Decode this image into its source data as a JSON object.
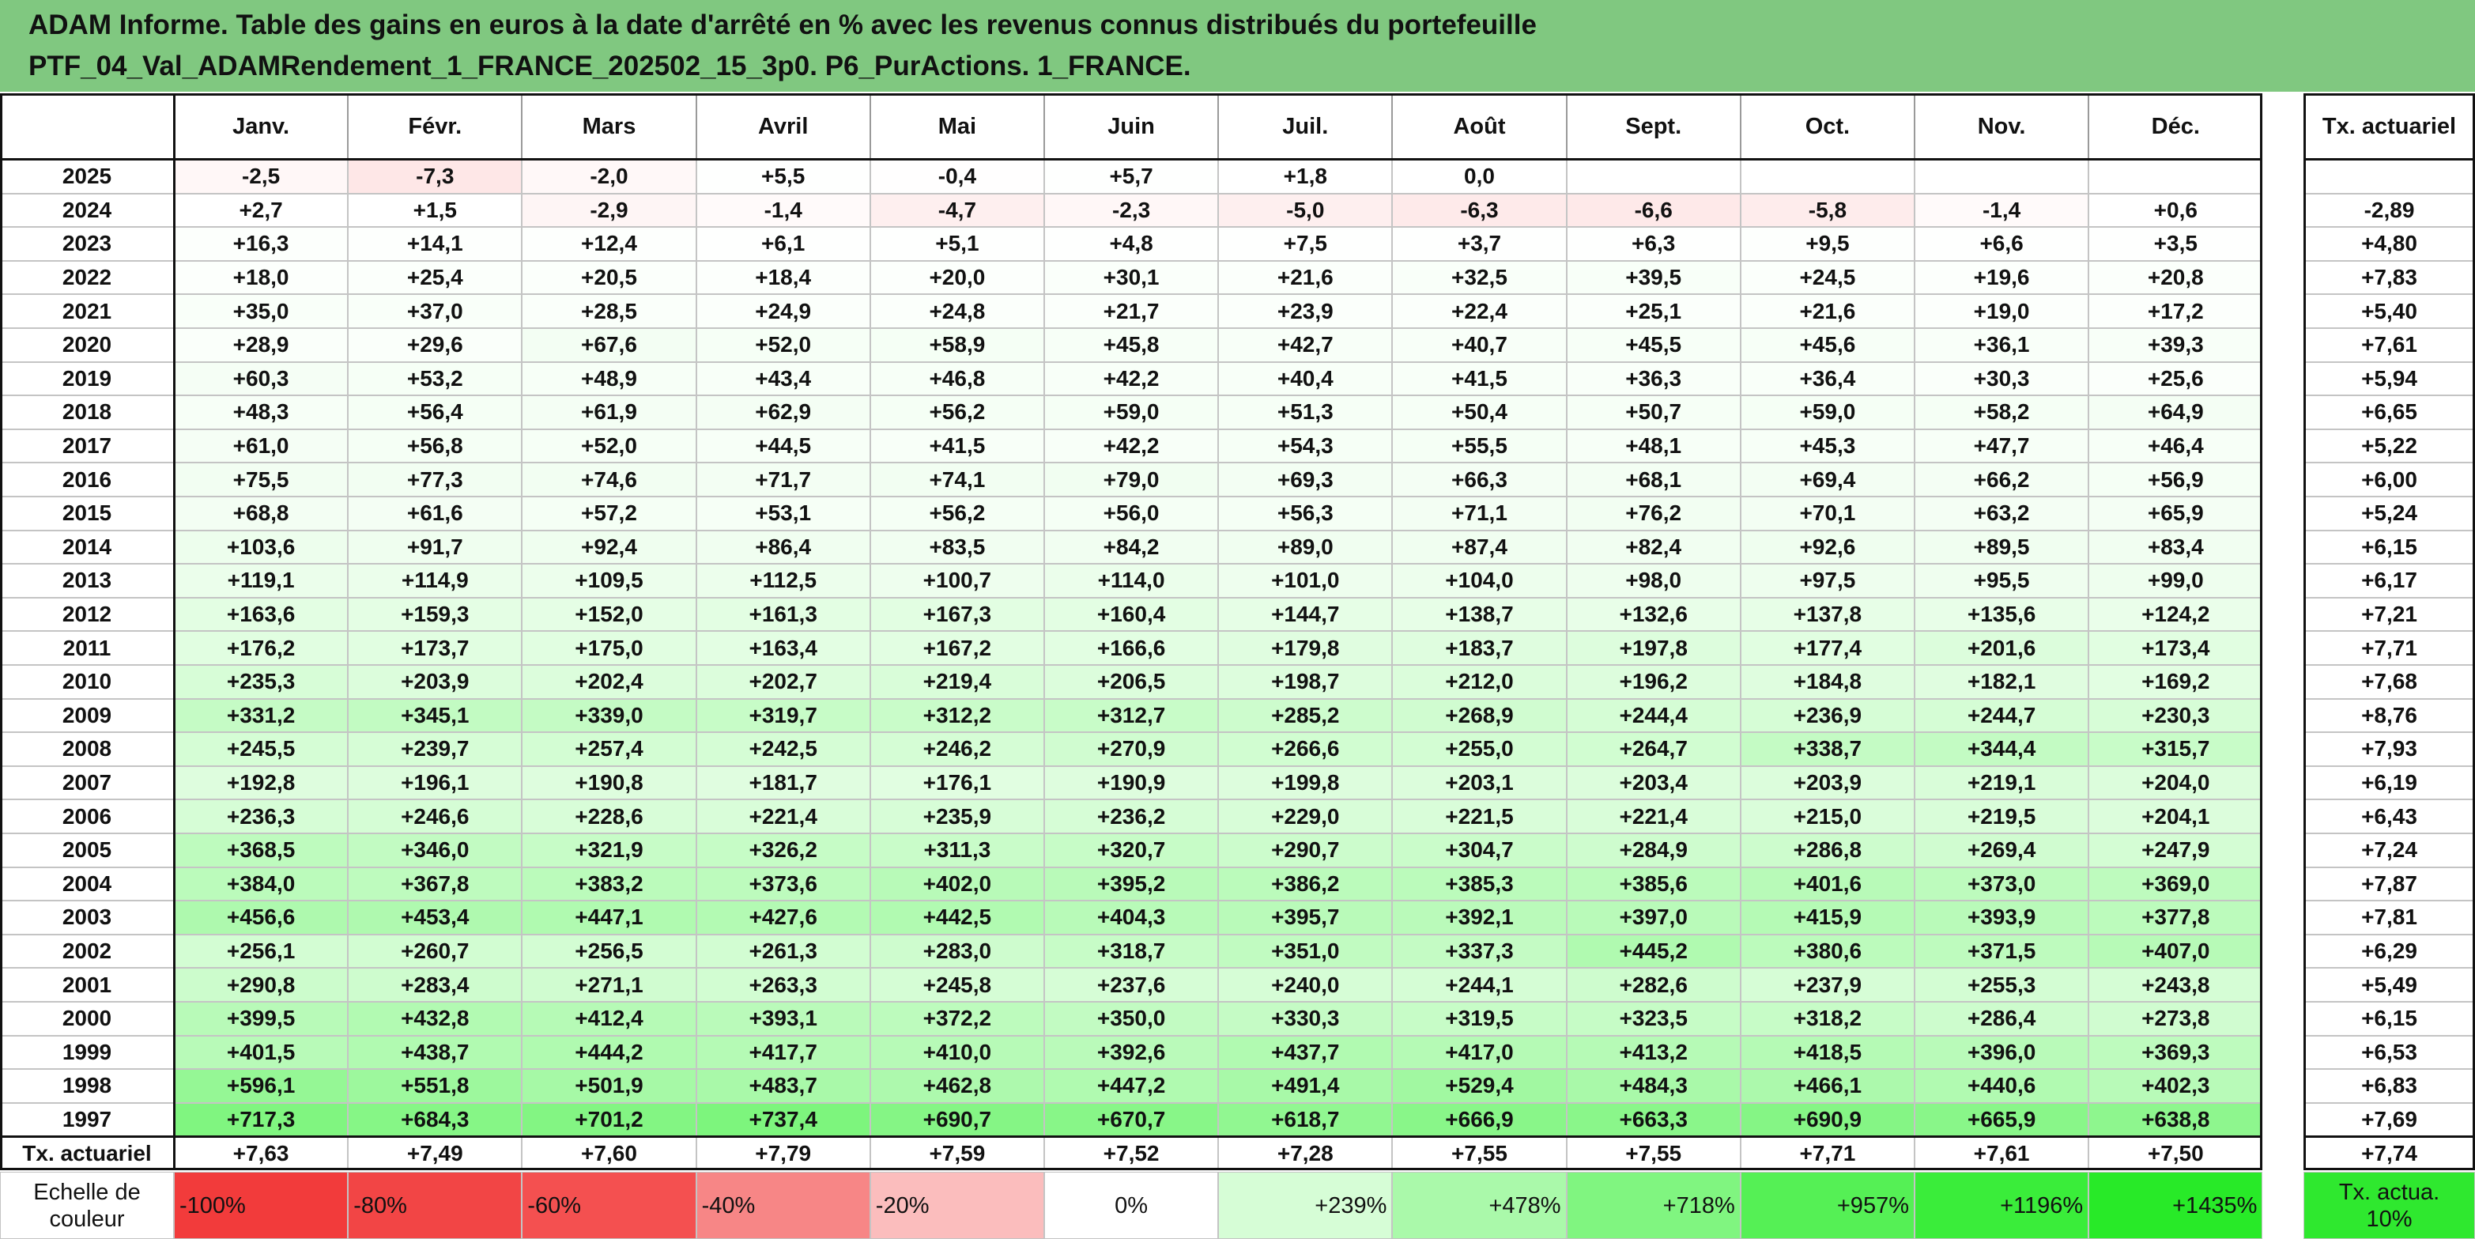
{
  "header": {
    "title_lines": [
      "ADAM Informe. Table des gains en euros à la date d'arrêté en % avec les revenus connus distribués du portefeuille",
      "PTF_04_Val_ADAMRendement_1_FRANCE_202502_15_3p0. P6_PurActions. 1_FRANCE."
    ]
  },
  "table": {
    "columns": [
      "Janv.",
      "Févr.",
      "Mars",
      "Avril",
      "Mai",
      "Juin",
      "Juil.",
      "Août",
      "Sept.",
      "Oct.",
      "Nov.",
      "Déc."
    ],
    "tx_header": "Tx. actuariel",
    "rows": [
      {
        "year": "2025",
        "values": [
          "-2,5",
          "-7,3",
          "-2,0",
          "+5,5",
          "-0,4",
          "+5,7",
          "+1,8",
          "0,0",
          null,
          null,
          null,
          null
        ],
        "tx": null
      },
      {
        "year": "2024",
        "values": [
          "+2,7",
          "+1,5",
          "-2,9",
          "-1,4",
          "-4,7",
          "-2,3",
          "-5,0",
          "-6,3",
          "-6,6",
          "-5,8",
          "-1,4",
          "+0,6"
        ],
        "tx": "-2,89"
      },
      {
        "year": "2023",
        "values": [
          "+16,3",
          "+14,1",
          "+12,4",
          "+6,1",
          "+5,1",
          "+4,8",
          "+7,5",
          "+3,7",
          "+6,3",
          "+9,5",
          "+6,6",
          "+3,5"
        ],
        "tx": "+4,80"
      },
      {
        "year": "2022",
        "values": [
          "+18,0",
          "+25,4",
          "+20,5",
          "+18,4",
          "+20,0",
          "+30,1",
          "+21,6",
          "+32,5",
          "+39,5",
          "+24,5",
          "+19,6",
          "+20,8"
        ],
        "tx": "+7,83"
      },
      {
        "year": "2021",
        "values": [
          "+35,0",
          "+37,0",
          "+28,5",
          "+24,9",
          "+24,8",
          "+21,7",
          "+23,9",
          "+22,4",
          "+25,1",
          "+21,6",
          "+19,0",
          "+17,2"
        ],
        "tx": "+5,40"
      },
      {
        "year": "2020",
        "values": [
          "+28,9",
          "+29,6",
          "+67,6",
          "+52,0",
          "+58,9",
          "+45,8",
          "+42,7",
          "+40,7",
          "+45,5",
          "+45,6",
          "+36,1",
          "+39,3"
        ],
        "tx": "+7,61"
      },
      {
        "year": "2019",
        "values": [
          "+60,3",
          "+53,2",
          "+48,9",
          "+43,4",
          "+46,8",
          "+42,2",
          "+40,4",
          "+41,5",
          "+36,3",
          "+36,4",
          "+30,3",
          "+25,6"
        ],
        "tx": "+5,94"
      },
      {
        "year": "2018",
        "values": [
          "+48,3",
          "+56,4",
          "+61,9",
          "+62,9",
          "+56,2",
          "+59,0",
          "+51,3",
          "+50,4",
          "+50,7",
          "+59,0",
          "+58,2",
          "+64,9"
        ],
        "tx": "+6,65"
      },
      {
        "year": "2017",
        "values": [
          "+61,0",
          "+56,8",
          "+52,0",
          "+44,5",
          "+41,5",
          "+42,2",
          "+54,3",
          "+55,5",
          "+48,1",
          "+45,3",
          "+47,7",
          "+46,4"
        ],
        "tx": "+5,22"
      },
      {
        "year": "2016",
        "values": [
          "+75,5",
          "+77,3",
          "+74,6",
          "+71,7",
          "+74,1",
          "+79,0",
          "+69,3",
          "+66,3",
          "+68,1",
          "+69,4",
          "+66,2",
          "+56,9"
        ],
        "tx": "+6,00"
      },
      {
        "year": "2015",
        "values": [
          "+68,8",
          "+61,6",
          "+57,2",
          "+53,1",
          "+56,2",
          "+56,0",
          "+56,3",
          "+71,1",
          "+76,2",
          "+70,1",
          "+63,2",
          "+65,9"
        ],
        "tx": "+5,24"
      },
      {
        "year": "2014",
        "values": [
          "+103,6",
          "+91,7",
          "+92,4",
          "+86,4",
          "+83,5",
          "+84,2",
          "+89,0",
          "+87,4",
          "+82,4",
          "+92,6",
          "+89,5",
          "+83,4"
        ],
        "tx": "+6,15"
      },
      {
        "year": "2013",
        "values": [
          "+119,1",
          "+114,9",
          "+109,5",
          "+112,5",
          "+100,7",
          "+114,0",
          "+101,0",
          "+104,0",
          "+98,0",
          "+97,5",
          "+95,5",
          "+99,0"
        ],
        "tx": "+6,17"
      },
      {
        "year": "2012",
        "values": [
          "+163,6",
          "+159,3",
          "+152,0",
          "+161,3",
          "+167,3",
          "+160,4",
          "+144,7",
          "+138,7",
          "+132,6",
          "+137,8",
          "+135,6",
          "+124,2"
        ],
        "tx": "+7,21"
      },
      {
        "year": "2011",
        "values": [
          "+176,2",
          "+173,7",
          "+175,0",
          "+163,4",
          "+167,2",
          "+166,6",
          "+179,8",
          "+183,7",
          "+197,8",
          "+177,4",
          "+201,6",
          "+173,4"
        ],
        "tx": "+7,71"
      },
      {
        "year": "2010",
        "values": [
          "+235,3",
          "+203,9",
          "+202,4",
          "+202,7",
          "+219,4",
          "+206,5",
          "+198,7",
          "+212,0",
          "+196,2",
          "+184,8",
          "+182,1",
          "+169,2"
        ],
        "tx": "+7,68"
      },
      {
        "year": "2009",
        "values": [
          "+331,2",
          "+345,1",
          "+339,0",
          "+319,7",
          "+312,2",
          "+312,7",
          "+285,2",
          "+268,9",
          "+244,4",
          "+236,9",
          "+244,7",
          "+230,3"
        ],
        "tx": "+8,76"
      },
      {
        "year": "2008",
        "values": [
          "+245,5",
          "+239,7",
          "+257,4",
          "+242,5",
          "+246,2",
          "+270,9",
          "+266,6",
          "+255,0",
          "+264,7",
          "+338,7",
          "+344,4",
          "+315,7"
        ],
        "tx": "+7,93"
      },
      {
        "year": "2007",
        "values": [
          "+192,8",
          "+196,1",
          "+190,8",
          "+181,7",
          "+176,1",
          "+190,9",
          "+199,8",
          "+203,1",
          "+203,4",
          "+203,9",
          "+219,1",
          "+204,0"
        ],
        "tx": "+6,19"
      },
      {
        "year": "2006",
        "values": [
          "+236,3",
          "+246,6",
          "+228,6",
          "+221,4",
          "+235,9",
          "+236,2",
          "+229,0",
          "+221,5",
          "+221,4",
          "+215,0",
          "+219,5",
          "+204,1"
        ],
        "tx": "+6,43"
      },
      {
        "year": "2005",
        "values": [
          "+368,5",
          "+346,0",
          "+321,9",
          "+326,2",
          "+311,3",
          "+320,7",
          "+290,7",
          "+304,7",
          "+284,9",
          "+286,8",
          "+269,4",
          "+247,9"
        ],
        "tx": "+7,24"
      },
      {
        "year": "2004",
        "values": [
          "+384,0",
          "+367,8",
          "+383,2",
          "+373,6",
          "+402,0",
          "+395,2",
          "+386,2",
          "+385,3",
          "+385,6",
          "+401,6",
          "+373,0",
          "+369,0"
        ],
        "tx": "+7,87"
      },
      {
        "year": "2003",
        "values": [
          "+456,6",
          "+453,4",
          "+447,1",
          "+427,6",
          "+442,5",
          "+404,3",
          "+395,7",
          "+392,1",
          "+397,0",
          "+415,9",
          "+393,9",
          "+377,8"
        ],
        "tx": "+7,81"
      },
      {
        "year": "2002",
        "values": [
          "+256,1",
          "+260,7",
          "+256,5",
          "+261,3",
          "+283,0",
          "+318,7",
          "+351,0",
          "+337,3",
          "+445,2",
          "+380,6",
          "+371,5",
          "+407,0"
        ],
        "tx": "+6,29"
      },
      {
        "year": "2001",
        "values": [
          "+290,8",
          "+283,4",
          "+271,1",
          "+263,3",
          "+245,8",
          "+237,6",
          "+240,0",
          "+244,1",
          "+282,6",
          "+237,9",
          "+255,3",
          "+243,8"
        ],
        "tx": "+5,49"
      },
      {
        "year": "2000",
        "values": [
          "+399,5",
          "+432,8",
          "+412,4",
          "+393,1",
          "+372,2",
          "+350,0",
          "+330,3",
          "+319,5",
          "+323,5",
          "+318,2",
          "+286,4",
          "+273,8"
        ],
        "tx": "+6,15"
      },
      {
        "year": "1999",
        "values": [
          "+401,5",
          "+438,7",
          "+444,2",
          "+417,7",
          "+410,0",
          "+392,6",
          "+437,7",
          "+417,0",
          "+413,2",
          "+418,5",
          "+396,0",
          "+369,3"
        ],
        "tx": "+6,53"
      },
      {
        "year": "1998",
        "values": [
          "+596,1",
          "+551,8",
          "+501,9",
          "+483,7",
          "+462,8",
          "+447,2",
          "+491,4",
          "+529,4",
          "+484,3",
          "+466,1",
          "+440,6",
          "+402,3"
        ],
        "tx": "+6,83"
      },
      {
        "year": "1997",
        "values": [
          "+717,3",
          "+684,3",
          "+701,2",
          "+737,4",
          "+690,7",
          "+670,7",
          "+618,7",
          "+666,9",
          "+663,3",
          "+690,9",
          "+665,9",
          "+638,8"
        ],
        "tx": "+7,69"
      }
    ],
    "footer": {
      "label": "Tx. actuariel",
      "values": [
        "+7,63",
        "+7,49",
        "+7,60",
        "+7,79",
        "+7,59",
        "+7,52",
        "+7,28",
        "+7,55",
        "+7,55",
        "+7,71",
        "+7,61",
        "+7,50"
      ],
      "tx": "+7,74"
    },
    "scale": {
      "label": "Echelle de couleur",
      "stops": [
        {
          "label": "-100%",
          "color": "#f23b3b"
        },
        {
          "label": "-80%",
          "color": "#f24545"
        },
        {
          "label": "-60%",
          "color": "#f45050"
        },
        {
          "label": "-40%",
          "color": "#f78686"
        },
        {
          "label": "-20%",
          "color": "#fbbdbd"
        },
        {
          "label": "0%",
          "color": "#ffffff"
        },
        {
          "label": "+239%",
          "color": "#d6fdd6"
        },
        {
          "label": "+478%",
          "color": "#aaf9aa"
        },
        {
          "label": "+718%",
          "color": "#80f580"
        },
        {
          "label": "+957%",
          "color": "#55f055"
        },
        {
          "label": "+1196%",
          "color": "#3aed3a"
        },
        {
          "label": "+1435%",
          "color": "#28ea28"
        }
      ],
      "tx_label": "Tx. actua. 10%",
      "tx_color": "#2fe82f"
    }
  }
}
